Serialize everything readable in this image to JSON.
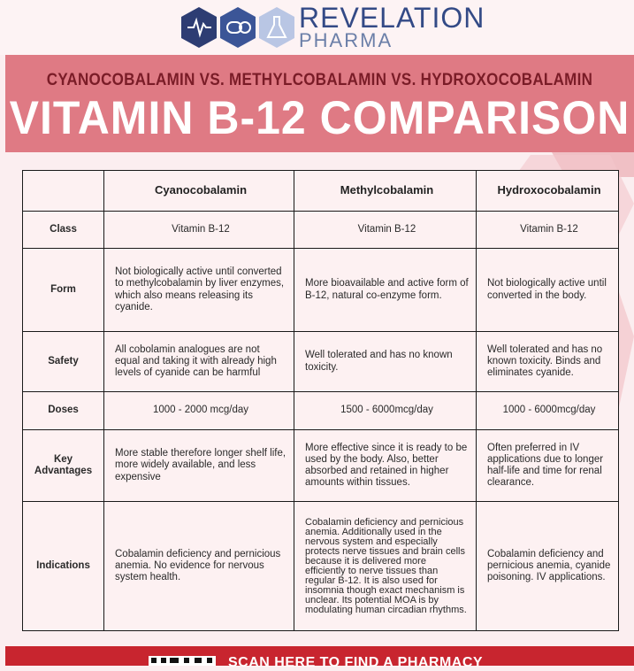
{
  "brand": {
    "name": "REVELATION",
    "sub": "PHARMA",
    "colors": {
      "navy": "#334a86",
      "banner": "#df7a84",
      "accent": "#c8252f"
    },
    "icons": [
      "heartbeat-icon",
      "pill-icon",
      "flask-icon"
    ]
  },
  "banner": {
    "subtitle": "CYANOCOBALAMIN VS. METHYLCOBALAMIN VS. HYDROXOCOBALAMIN",
    "title": "VITAMIN B-12 COMPARISON"
  },
  "table": {
    "columns": [
      "",
      "Cyanocobalamin",
      "Methylcobalamin",
      "Hydroxocobalamin"
    ],
    "rows": [
      {
        "label": "Class",
        "cells": [
          "Vitamin B-12",
          "Vitamin B-12",
          "Vitamin B-12"
        ]
      },
      {
        "label": "Form",
        "cells": [
          "Not biologically active until converted to methylcobalamin by liver enzymes, which also means releasing its cyanide.",
          "More bioavailable and active form of B-12, natural co-enzyme form.",
          "Not biologically active until converted in the body."
        ]
      },
      {
        "label": "Safety",
        "cells": [
          "All cobolamin analogues are not equal and taking it with already high levels of cyanide can be harmful",
          "Well tolerated and has no known toxicity.",
          "Well tolerated and has no known toxicity. Binds and eliminates cyanide."
        ]
      },
      {
        "label": "Doses",
        "cells": [
          "1000 - 2000 mcg/day",
          "1500 - 6000mcg/day",
          "1000 - 6000mcg/day"
        ]
      },
      {
        "label": "Key Advantages",
        "cells": [
          "More stable therefore longer shelf life, more widely available, and less expensive",
          "More effective since it is ready to be used by the body. Also, better absorbed and retained in higher amounts within tissues.",
          "Often preferred in IV applications due to longer half-life and time for renal clearance."
        ]
      },
      {
        "label": "Indications",
        "cells": [
          "Cobalamin deficiency and pernicious anemia. No evidence for nervous system health.",
          "Cobalamin deficiency and pernicious anemia. Additionally used in the nervous system and especially protects nerve tissues and brain cells because it is delivered more efficiently to nerve tissues than regular B-12. It is also used for insomnia though exact mechanism is unclear. Its potential MOA is by modulating human circadian rhythms.",
          "Cobalamin deficiency and pernicious anemia, cyanide poisoning. IV applications."
        ]
      }
    ]
  },
  "footer": {
    "text": "SCAN HERE TO FIND A PHARMACY",
    "qr_icon": "qr-code-icon"
  }
}
